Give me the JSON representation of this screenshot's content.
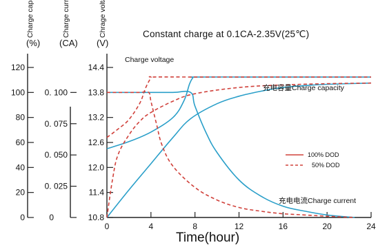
{
  "chart_data": {
    "type": "line",
    "title": "Constant charge at 0.1CA-2.35V(25℃)",
    "xlabel": "Time(hour)",
    "xlim": [
      0,
      24
    ],
    "x_ticks": [
      "0",
      "4",
      "8",
      "12",
      "16",
      "20",
      "24"
    ],
    "axes": {
      "capacity": {
        "name": "Charge capacity",
        "unit": "(%)",
        "lim": [
          0,
          120
        ],
        "ticks": [
          "0",
          "20",
          "40",
          "60",
          "80",
          "100",
          "120"
        ]
      },
      "current": {
        "name": "Charge current",
        "unit": "(CA)",
        "lim": [
          0,
          0.12
        ],
        "ticks": [
          "0",
          "0. 025",
          "0. 050",
          "0. 075",
          "0. 100"
        ]
      },
      "voltage": {
        "name": "Chrage voltage",
        "unit": "(V)",
        "lim": [
          10.8,
          14.4
        ],
        "ticks": [
          "10.8",
          "11.4",
          "12.0",
          "12.6",
          "13.2",
          "13.8",
          "14.4"
        ]
      }
    },
    "annotations": {
      "voltage": "Charge voltage",
      "capacity": "充电容量Charge  capacity",
      "current": "充电电流Charge  current"
    },
    "legend": {
      "placement": "right",
      "entries": [
        {
          "label": "100% DOD",
          "style": "solid"
        },
        {
          "label": "50% DOD",
          "style": "dashed"
        }
      ]
    },
    "colors": {
      "solid": "#2a9fc9",
      "dashed": "#d0403a"
    },
    "series": [
      {
        "group": "voltage",
        "dod": "100%",
        "axis": "voltage",
        "x": [
          0,
          2,
          4,
          6,
          7,
          7.5,
          7.8,
          8,
          12,
          16,
          20,
          24
        ],
        "y": [
          12.45,
          12.62,
          12.85,
          13.2,
          13.6,
          14.0,
          14.15,
          14.17,
          14.17,
          14.17,
          14.17,
          14.17
        ]
      },
      {
        "group": "voltage",
        "dod": "50%",
        "axis": "voltage",
        "x": [
          0,
          1,
          2,
          3,
          3.5,
          4,
          4.2,
          8,
          12,
          16,
          20,
          24
        ],
        "y": [
          12.72,
          12.92,
          13.15,
          13.55,
          13.9,
          14.15,
          14.17,
          14.17,
          14.17,
          14.17,
          14.17,
          14.17
        ]
      },
      {
        "group": "capacity",
        "dod": "100%",
        "axis": "capacity",
        "x": [
          0,
          2,
          4,
          6,
          7.6,
          10,
          12,
          14,
          16,
          18,
          20,
          24
        ],
        "y": [
          0,
          22,
          43,
          64,
          79,
          91,
          97,
          101,
          104,
          105.5,
          106.5,
          107.5
        ]
      },
      {
        "group": "capacity",
        "dod": "50%",
        "axis": "capacity",
        "x": [
          0,
          0.5,
          1,
          2,
          3,
          4,
          6,
          8,
          12,
          16,
          20,
          24
        ],
        "y": [
          0,
          30,
          50,
          66,
          77,
          84,
          93,
          99,
          104,
          106,
          107,
          107.5
        ]
      },
      {
        "group": "current",
        "dod": "100%",
        "axis": "current",
        "x": [
          0,
          2,
          4,
          6,
          7.6,
          8,
          9,
          10,
          12,
          14,
          16,
          18,
          20,
          22.5
        ],
        "y": [
          0.1,
          0.1,
          0.1,
          0.1,
          0.1,
          0.089,
          0.068,
          0.052,
          0.03,
          0.017,
          0.009,
          0.005,
          0.002,
          0.0
        ]
      },
      {
        "group": "current",
        "dod": "50%",
        "axis": "current",
        "x": [
          0,
          1,
          2,
          3,
          3.8,
          4,
          4.5,
          5,
          6,
          8,
          10,
          12,
          14,
          16,
          18,
          20,
          22.5
        ],
        "y": [
          0.1,
          0.1,
          0.1,
          0.1,
          0.1,
          0.093,
          0.075,
          0.058,
          0.041,
          0.024,
          0.014,
          0.008,
          0.005,
          0.003,
          0.002,
          0.001,
          0.0
        ]
      }
    ]
  }
}
